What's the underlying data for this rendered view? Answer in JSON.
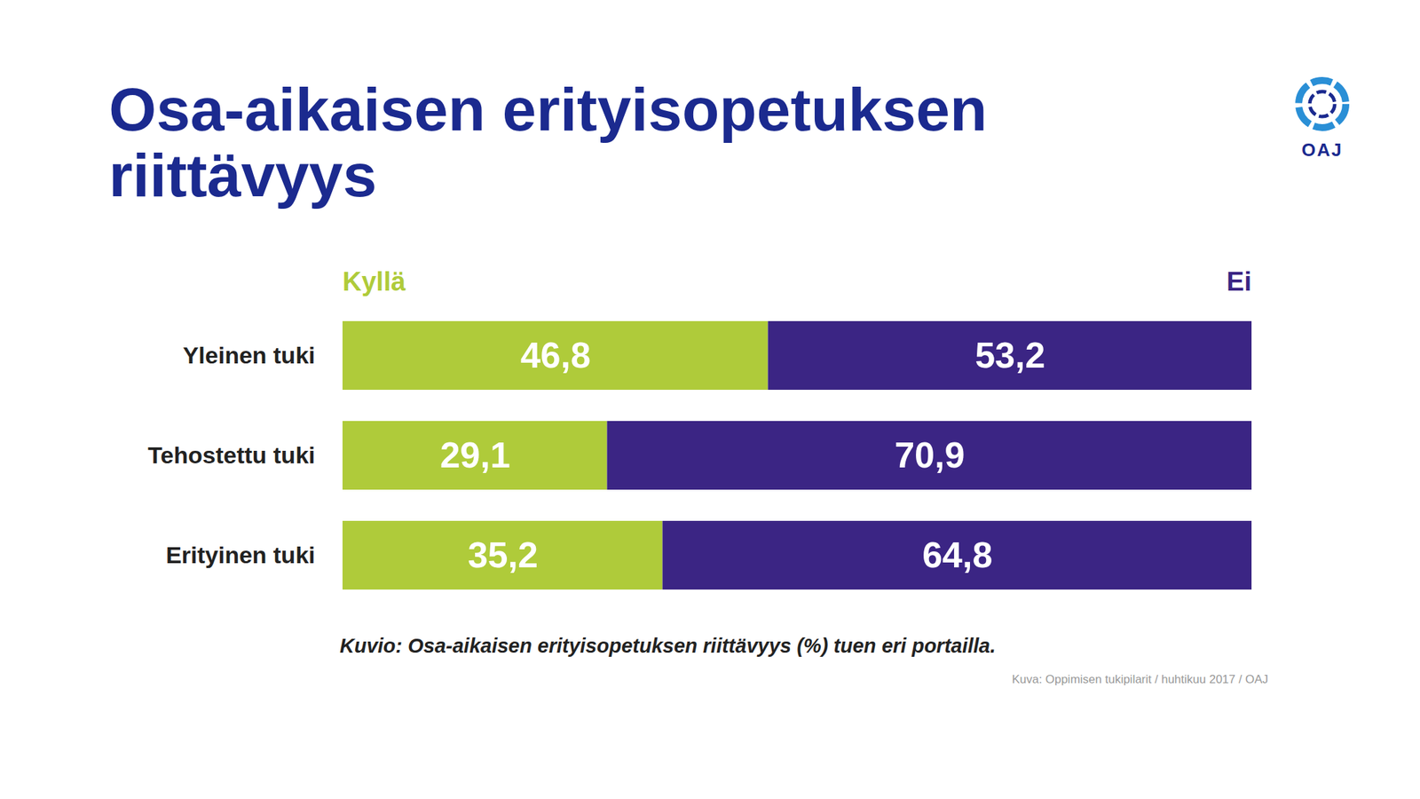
{
  "logo": "OAJ",
  "chart_data": {
    "type": "bar",
    "title": "Osa-aikaisen erityisopetuksen riittävyys",
    "caption": "Kuvio: Osa-aikaisen erityisopetuksen riittävyys (%) tuen eri portailla.",
    "source": "Kuva: Oppimisen tukipilarit / huhtikuu 2017 / OAJ",
    "orientation": "horizontal",
    "stacked": true,
    "data_labels": true,
    "tick_labels": "y",
    "grid": false,
    "legend": "top",
    "categories": [
      "Yleinen tuki",
      "Tehostettu tuki",
      "Erityinen tuki"
    ],
    "xlim": [
      0,
      100
    ],
    "xticks": [],
    "series": [
      {
        "name": "Kyllä",
        "color": "#afcb3a",
        "values": [
          46.8,
          29.1,
          35.2
        ],
        "value_labels": [
          "46,8",
          "29,1",
          "35,2"
        ]
      },
      {
        "name": "Ei",
        "color": "#3b2584",
        "values": [
          53.2,
          70.9,
          64.8
        ],
        "value_labels": [
          "53,2",
          "70,9",
          "64,8"
        ]
      }
    ]
  }
}
